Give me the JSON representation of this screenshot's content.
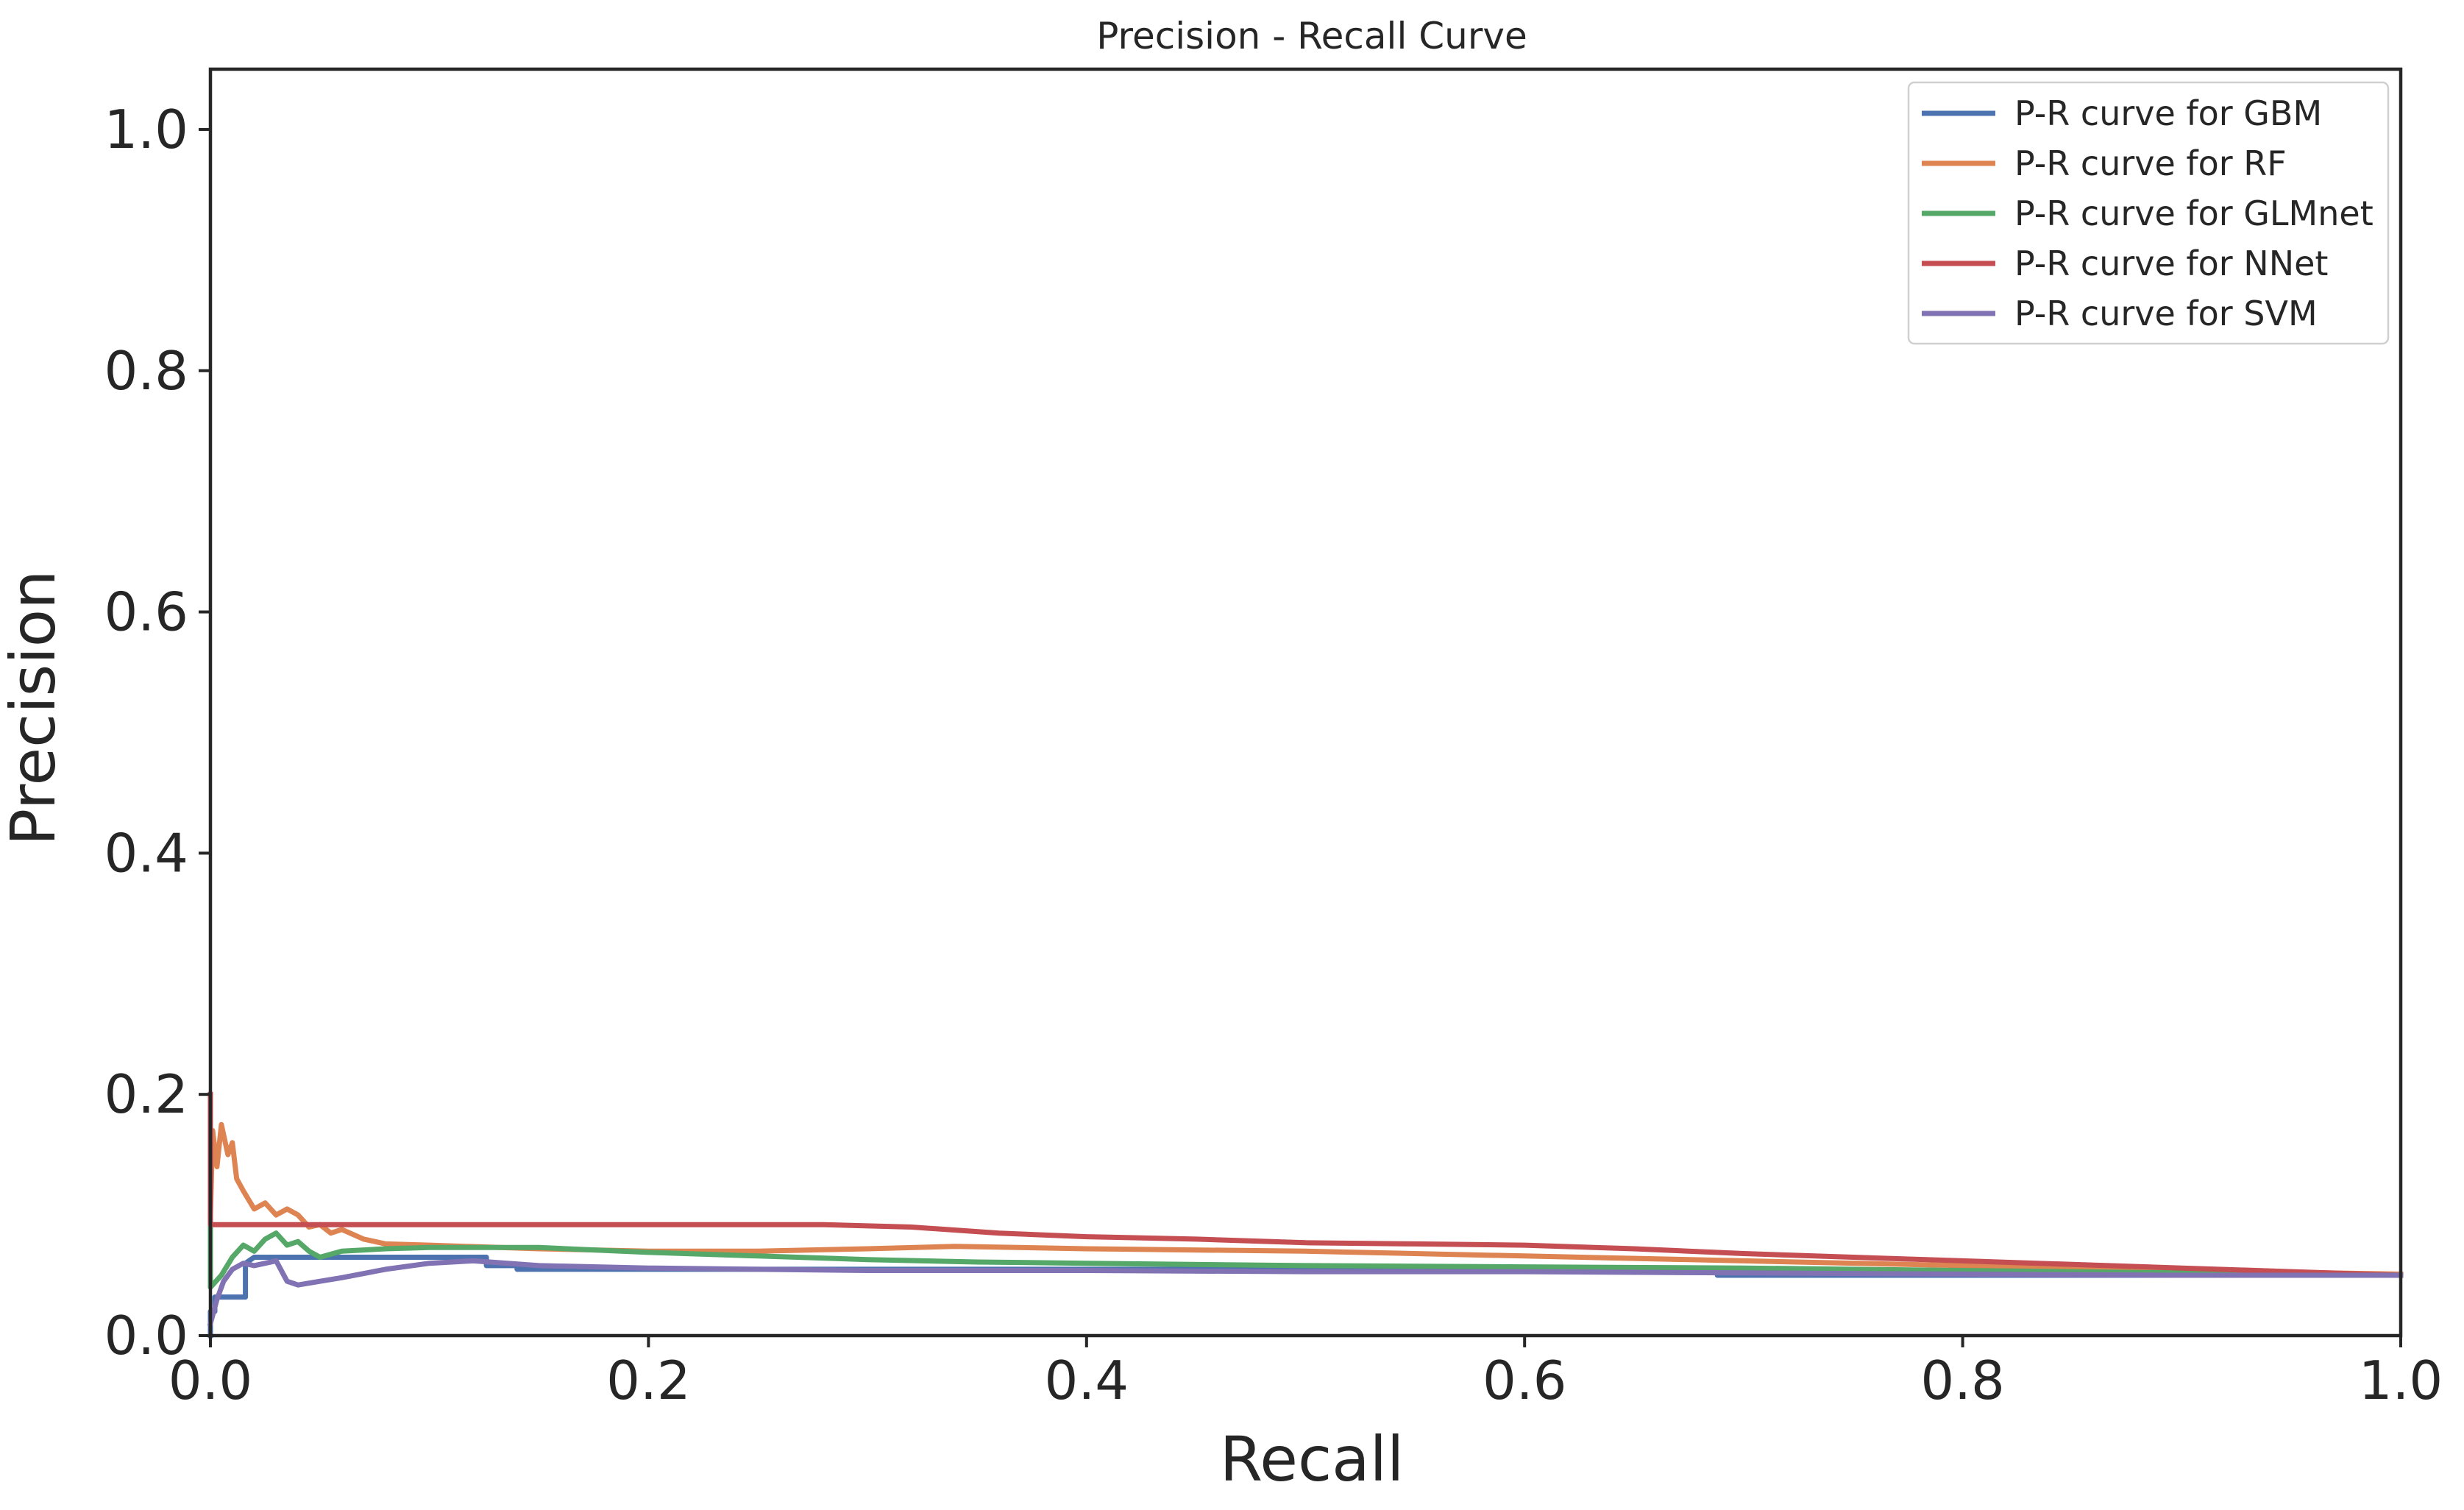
{
  "chart_data": {
    "type": "line",
    "title": "Precision - Recall Curve",
    "xlabel": "Recall",
    "ylabel": "Precision",
    "xlim": [
      0.0,
      1.0
    ],
    "ylim": [
      0.0,
      1.05
    ],
    "xticks": [
      0.0,
      0.2,
      0.4,
      0.6,
      0.8,
      1.0
    ],
    "yticks": [
      0.0,
      0.2,
      0.4,
      0.6,
      0.8,
      1.0
    ],
    "xtick_labels": [
      "0.0",
      "0.2",
      "0.4",
      "0.6",
      "0.8",
      "1.0"
    ],
    "ytick_labels": [
      "0.0",
      "0.2",
      "0.4",
      "0.6",
      "0.8",
      "1.0"
    ],
    "grid": false,
    "legend_position": "top-right",
    "series": [
      {
        "name": "P-R curve for GBM",
        "color": "#4c72b0",
        "points": [
          [
            0.0,
            0.0
          ],
          [
            0.0,
            0.02
          ],
          [
            0.002,
            0.02
          ],
          [
            0.002,
            0.032
          ],
          [
            0.016,
            0.032
          ],
          [
            0.016,
            0.06
          ],
          [
            0.02,
            0.065
          ],
          [
            0.126,
            0.065
          ],
          [
            0.126,
            0.058
          ],
          [
            0.14,
            0.058
          ],
          [
            0.14,
            0.055
          ],
          [
            0.4,
            0.055
          ],
          [
            0.6,
            0.055
          ],
          [
            0.688,
            0.055
          ],
          [
            0.688,
            0.05
          ],
          [
            0.8,
            0.05
          ],
          [
            0.9,
            0.05
          ],
          [
            1.0,
            0.05
          ]
        ]
      },
      {
        "name": "P-R curve for RF",
        "color": "#dd8452",
        "points": [
          [
            0.0,
            0.1
          ],
          [
            0.001,
            0.17
          ],
          [
            0.003,
            0.14
          ],
          [
            0.005,
            0.175
          ],
          [
            0.008,
            0.15
          ],
          [
            0.01,
            0.16
          ],
          [
            0.012,
            0.13
          ],
          [
            0.015,
            0.12
          ],
          [
            0.02,
            0.105
          ],
          [
            0.025,
            0.11
          ],
          [
            0.03,
            0.1
          ],
          [
            0.035,
            0.105
          ],
          [
            0.04,
            0.1
          ],
          [
            0.045,
            0.09
          ],
          [
            0.05,
            0.092
          ],
          [
            0.055,
            0.085
          ],
          [
            0.06,
            0.088
          ],
          [
            0.07,
            0.08
          ],
          [
            0.08,
            0.076
          ],
          [
            0.1,
            0.075
          ],
          [
            0.15,
            0.072
          ],
          [
            0.2,
            0.07
          ],
          [
            0.25,
            0.07
          ],
          [
            0.3,
            0.072
          ],
          [
            0.34,
            0.074
          ],
          [
            0.4,
            0.072
          ],
          [
            0.5,
            0.07
          ],
          [
            0.6,
            0.066
          ],
          [
            0.7,
            0.062
          ],
          [
            0.8,
            0.058
          ],
          [
            0.9,
            0.054
          ],
          [
            1.0,
            0.051
          ]
        ]
      },
      {
        "name": "P-R curve for GLMnet",
        "color": "#55a868",
        "points": [
          [
            0.0,
            0.09
          ],
          [
            0.0,
            0.04
          ],
          [
            0.005,
            0.05
          ],
          [
            0.01,
            0.065
          ],
          [
            0.015,
            0.075
          ],
          [
            0.02,
            0.07
          ],
          [
            0.025,
            0.08
          ],
          [
            0.03,
            0.085
          ],
          [
            0.035,
            0.075
          ],
          [
            0.04,
            0.078
          ],
          [
            0.045,
            0.07
          ],
          [
            0.05,
            0.065
          ],
          [
            0.06,
            0.07
          ],
          [
            0.08,
            0.072
          ],
          [
            0.1,
            0.073
          ],
          [
            0.15,
            0.073
          ],
          [
            0.2,
            0.069
          ],
          [
            0.25,
            0.066
          ],
          [
            0.3,
            0.063
          ],
          [
            0.35,
            0.061
          ],
          [
            0.4,
            0.06
          ],
          [
            0.5,
            0.058
          ],
          [
            0.6,
            0.057
          ],
          [
            0.7,
            0.056
          ],
          [
            0.8,
            0.054
          ],
          [
            0.9,
            0.052
          ],
          [
            1.0,
            0.05
          ]
        ]
      },
      {
        "name": "P-R curve for NNet",
        "color": "#c44e52",
        "points": [
          [
            0.0,
            0.2
          ],
          [
            0.0,
            0.092
          ],
          [
            0.1,
            0.092
          ],
          [
            0.2,
            0.092
          ],
          [
            0.28,
            0.092
          ],
          [
            0.32,
            0.09
          ],
          [
            0.36,
            0.085
          ],
          [
            0.4,
            0.082
          ],
          [
            0.45,
            0.08
          ],
          [
            0.5,
            0.077
          ],
          [
            0.55,
            0.076
          ],
          [
            0.6,
            0.075
          ],
          [
            0.65,
            0.072
          ],
          [
            0.7,
            0.068
          ],
          [
            0.75,
            0.065
          ],
          [
            0.8,
            0.062
          ],
          [
            0.85,
            0.059
          ],
          [
            0.9,
            0.056
          ],
          [
            0.95,
            0.053
          ],
          [
            1.0,
            0.05
          ]
        ]
      },
      {
        "name": "P-R curve for SVM",
        "color": "#8172b3",
        "points": [
          [
            0.0,
            0.01
          ],
          [
            0.003,
            0.03
          ],
          [
            0.006,
            0.045
          ],
          [
            0.01,
            0.055
          ],
          [
            0.015,
            0.06
          ],
          [
            0.02,
            0.058
          ],
          [
            0.03,
            0.062
          ],
          [
            0.035,
            0.045
          ],
          [
            0.04,
            0.042
          ],
          [
            0.05,
            0.045
          ],
          [
            0.06,
            0.048
          ],
          [
            0.08,
            0.055
          ],
          [
            0.1,
            0.06
          ],
          [
            0.12,
            0.062
          ],
          [
            0.15,
            0.058
          ],
          [
            0.2,
            0.056
          ],
          [
            0.3,
            0.054
          ],
          [
            0.4,
            0.054
          ],
          [
            0.5,
            0.053
          ],
          [
            0.6,
            0.053
          ],
          [
            0.7,
            0.052
          ],
          [
            0.8,
            0.051
          ],
          [
            0.9,
            0.05
          ],
          [
            1.0,
            0.05
          ]
        ]
      }
    ]
  }
}
